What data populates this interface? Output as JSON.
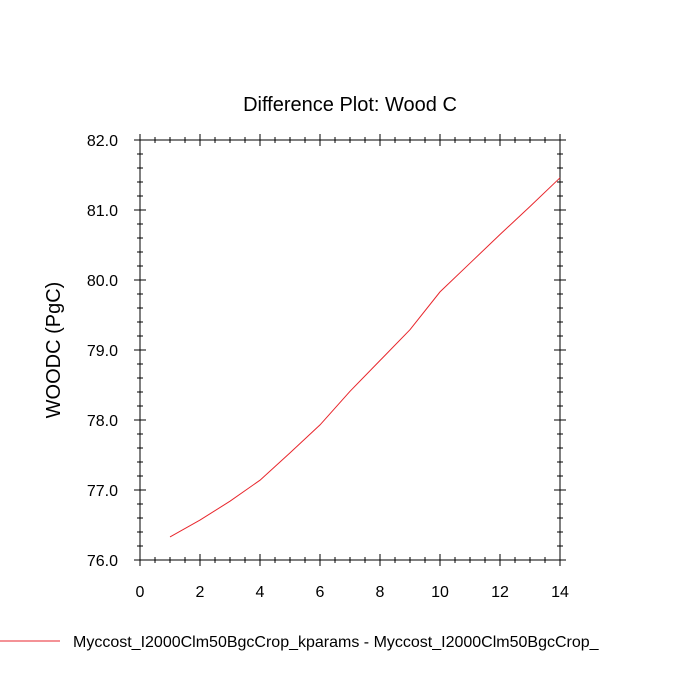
{
  "chart_data": {
    "type": "line",
    "title": "Difference Plot: Wood C",
    "xlabel": "",
    "ylabel": "WOODC  (PgC)",
    "xlim": [
      0,
      14
    ],
    "ylim": [
      76.0,
      82.0
    ],
    "x_ticks": [
      "0",
      "2",
      "4",
      "6",
      "8",
      "10",
      "12",
      "14"
    ],
    "y_ticks": [
      "76.0",
      "77.0",
      "78.0",
      "79.0",
      "80.0",
      "81.0",
      "82.0"
    ],
    "grid": false,
    "legend_position": "bottom",
    "series": [
      {
        "name": "Myccost_I2000Clm50BgcCrop_kparams - Myccost_I2000Clm50BgcCrop_",
        "color": "#e8262c",
        "x": [
          1,
          2,
          3,
          4,
          5,
          6,
          7,
          8,
          9,
          10,
          11,
          12,
          13,
          14
        ],
        "y": [
          76.33,
          76.57,
          76.84,
          77.14,
          77.53,
          77.93,
          78.41,
          78.85,
          79.29,
          79.83,
          80.24,
          80.65,
          81.05,
          81.46
        ]
      }
    ]
  }
}
